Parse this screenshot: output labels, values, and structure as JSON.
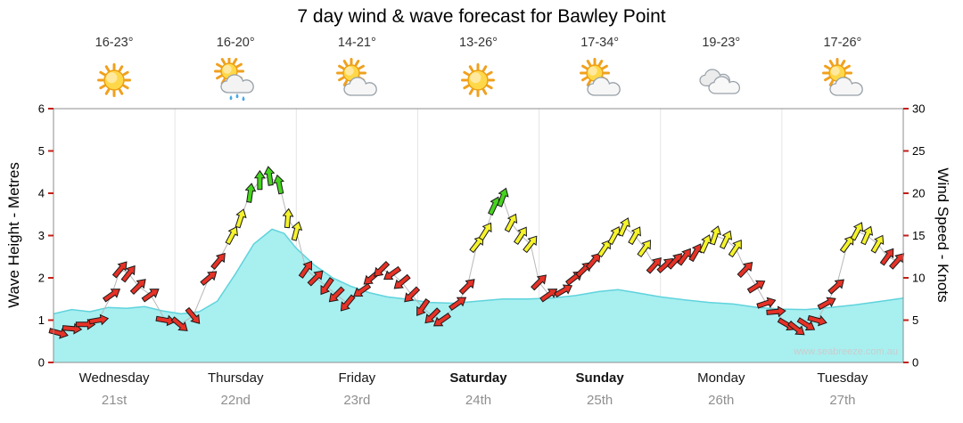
{
  "title": "7 day wind & wave forecast for Bawley Point",
  "watermark": "www.seabreeze.com.au",
  "days": [
    {
      "name": "Wednesday",
      "date": "21st",
      "temp": "16-23°",
      "icon": "sunny",
      "bold": false
    },
    {
      "name": "Thursday",
      "date": "22nd",
      "temp": "16-20°",
      "icon": "sun-showers",
      "bold": false
    },
    {
      "name": "Friday",
      "date": "23rd",
      "temp": "14-21°",
      "icon": "partly-cloudy",
      "bold": false
    },
    {
      "name": "Saturday",
      "date": "24th",
      "temp": "13-26°",
      "icon": "sunny",
      "bold": true
    },
    {
      "name": "Sunday",
      "date": "25th",
      "temp": "17-34°",
      "icon": "partly-cloudy",
      "bold": true
    },
    {
      "name": "Monday",
      "date": "26th",
      "temp": "19-23°",
      "icon": "cloudy",
      "bold": false
    },
    {
      "name": "Tuesday",
      "date": "27th",
      "temp": "17-26°",
      "icon": "partly-cloudy",
      "bold": false
    }
  ],
  "axes": {
    "left_label": "Wave Height - Metres",
    "right_label": "Wind Speed - Knots",
    "left_ticks": [
      0,
      1,
      2,
      3,
      4,
      5,
      6
    ],
    "right_ticks": [
      0,
      5,
      10,
      15,
      20,
      25,
      30
    ]
  },
  "colors": {
    "wave_fill": "#a8eff0",
    "wave_edge": "#5fd3dc",
    "arrow_red": "#e63227",
    "arrow_yellow": "#f5f32c",
    "arrow_green": "#46d41e",
    "arrow_outline": "#1a1a1a",
    "wind_line": "#b8b8b8",
    "tick": "#c22017",
    "frame": "#8c8c8c",
    "separator": "#e4e4e4",
    "watermark": "#cccccc"
  },
  "chart_data": {
    "type": "area",
    "title": "7 day wind & wave forecast for Bawley Point",
    "x_unit": "days from Wednesday 00:00 (0-7)",
    "x_categories": [
      "Wednesday 21st",
      "Thursday 22nd",
      "Friday 23rd",
      "Saturday 24th",
      "Sunday 25th",
      "Monday 26th",
      "Tuesday 27th"
    ],
    "wave": {
      "label": "Wave Height (m)",
      "ylim": [
        0,
        6
      ],
      "points": [
        [
          0,
          1.15
        ],
        [
          0.15,
          1.25
        ],
        [
          0.3,
          1.2
        ],
        [
          0.45,
          1.3
        ],
        [
          0.6,
          1.28
        ],
        [
          0.75,
          1.32
        ],
        [
          0.9,
          1.22
        ],
        [
          1.05,
          1.15
        ],
        [
          1.2,
          1.2
        ],
        [
          1.35,
          1.45
        ],
        [
          1.5,
          2.1
        ],
        [
          1.65,
          2.8
        ],
        [
          1.8,
          3.15
        ],
        [
          1.9,
          3.05
        ],
        [
          2.0,
          2.7
        ],
        [
          2.15,
          2.3
        ],
        [
          2.3,
          2.0
        ],
        [
          2.45,
          1.8
        ],
        [
          2.6,
          1.65
        ],
        [
          2.75,
          1.55
        ],
        [
          2.9,
          1.5
        ],
        [
          3.1,
          1.42
        ],
        [
          3.3,
          1.4
        ],
        [
          3.5,
          1.45
        ],
        [
          3.7,
          1.5
        ],
        [
          3.9,
          1.5
        ],
        [
          4.1,
          1.52
        ],
        [
          4.3,
          1.58
        ],
        [
          4.5,
          1.68
        ],
        [
          4.65,
          1.72
        ],
        [
          4.8,
          1.65
        ],
        [
          5.0,
          1.55
        ],
        [
          5.2,
          1.48
        ],
        [
          5.4,
          1.42
        ],
        [
          5.6,
          1.38
        ],
        [
          5.8,
          1.3
        ],
        [
          6.0,
          1.26
        ],
        [
          6.2,
          1.25
        ],
        [
          6.4,
          1.3
        ],
        [
          6.6,
          1.36
        ],
        [
          6.8,
          1.44
        ],
        [
          7.0,
          1.52
        ]
      ]
    },
    "wind": {
      "label": "Wind Speed (knots), arrow direction degrees (0 = up)",
      "ylim": [
        0,
        30
      ],
      "color_rule": {
        "green_min_kn": 18,
        "yellow_min_kn": 13.5,
        "red": "below 13.5"
      },
      "points": [
        [
          0.04,
          3.5,
          105
        ],
        [
          0.15,
          4,
          95
        ],
        [
          0.26,
          4.5,
          90
        ],
        [
          0.37,
          5,
          80
        ],
        [
          0.48,
          8,
          55
        ],
        [
          0.55,
          11,
          40
        ],
        [
          0.62,
          10.5,
          38
        ],
        [
          0.7,
          9,
          45
        ],
        [
          0.8,
          8,
          55
        ],
        [
          0.92,
          5,
          100
        ],
        [
          1.04,
          4.5,
          130
        ],
        [
          1.15,
          5.5,
          140
        ],
        [
          1.28,
          10,
          50
        ],
        [
          1.36,
          12,
          40
        ],
        [
          1.47,
          15,
          28
        ],
        [
          1.54,
          17,
          18
        ],
        [
          1.62,
          20,
          8
        ],
        [
          1.7,
          21.5,
          0
        ],
        [
          1.78,
          22,
          -8
        ],
        [
          1.86,
          21,
          -12
        ],
        [
          1.93,
          17,
          5
        ],
        [
          2.0,
          15.5,
          15
        ],
        [
          2.08,
          11,
          35
        ],
        [
          2.16,
          10,
          45
        ],
        [
          2.25,
          9,
          215
        ],
        [
          2.33,
          8,
          225
        ],
        [
          2.42,
          7,
          220
        ],
        [
          2.54,
          8.5,
          235
        ],
        [
          2.62,
          10,
          230
        ],
        [
          2.7,
          11,
          225
        ],
        [
          2.79,
          10.5,
          235
        ],
        [
          2.87,
          9.5,
          230
        ],
        [
          2.95,
          8,
          225
        ],
        [
          3.04,
          6.5,
          215
        ],
        [
          3.12,
          5.5,
          225
        ],
        [
          3.2,
          5,
          235
        ],
        [
          3.33,
          7,
          55
        ],
        [
          3.41,
          9,
          45
        ],
        [
          3.49,
          14,
          38
        ],
        [
          3.56,
          15.5,
          32
        ],
        [
          3.63,
          18.5,
          25
        ],
        [
          3.7,
          19.5,
          20
        ],
        [
          3.77,
          16.5,
          28
        ],
        [
          3.85,
          15,
          33
        ],
        [
          3.93,
          14,
          38
        ],
        [
          4.0,
          9.5,
          45
        ],
        [
          4.08,
          8,
          55
        ],
        [
          4.2,
          8.5,
          60
        ],
        [
          4.29,
          10,
          52
        ],
        [
          4.37,
          11,
          46
        ],
        [
          4.45,
          12,
          40
        ],
        [
          4.54,
          13.5,
          34
        ],
        [
          4.62,
          15,
          28
        ],
        [
          4.7,
          16,
          24
        ],
        [
          4.79,
          15,
          30
        ],
        [
          4.87,
          13.5,
          36
        ],
        [
          4.95,
          11.5,
          42
        ],
        [
          5.04,
          11.5,
          48
        ],
        [
          5.12,
          12,
          42
        ],
        [
          5.2,
          12.5,
          36
        ],
        [
          5.29,
          13,
          30
        ],
        [
          5.37,
          14,
          24
        ],
        [
          5.45,
          15,
          18
        ],
        [
          5.54,
          14.5,
          26
        ],
        [
          5.62,
          13.5,
          34
        ],
        [
          5.7,
          11,
          44
        ],
        [
          5.79,
          9,
          58
        ],
        [
          5.87,
          7,
          72
        ],
        [
          5.95,
          6,
          85
        ],
        [
          6.04,
          4.5,
          120
        ],
        [
          6.12,
          4,
          128
        ],
        [
          6.2,
          4.5,
          122
        ],
        [
          6.29,
          5,
          105
        ],
        [
          6.37,
          7,
          62
        ],
        [
          6.45,
          9,
          48
        ],
        [
          6.54,
          14,
          36
        ],
        [
          6.62,
          15.5,
          28
        ],
        [
          6.7,
          15,
          24
        ],
        [
          6.79,
          14,
          30
        ],
        [
          6.87,
          12.5,
          36
        ],
        [
          6.95,
          12,
          42
        ]
      ]
    }
  }
}
